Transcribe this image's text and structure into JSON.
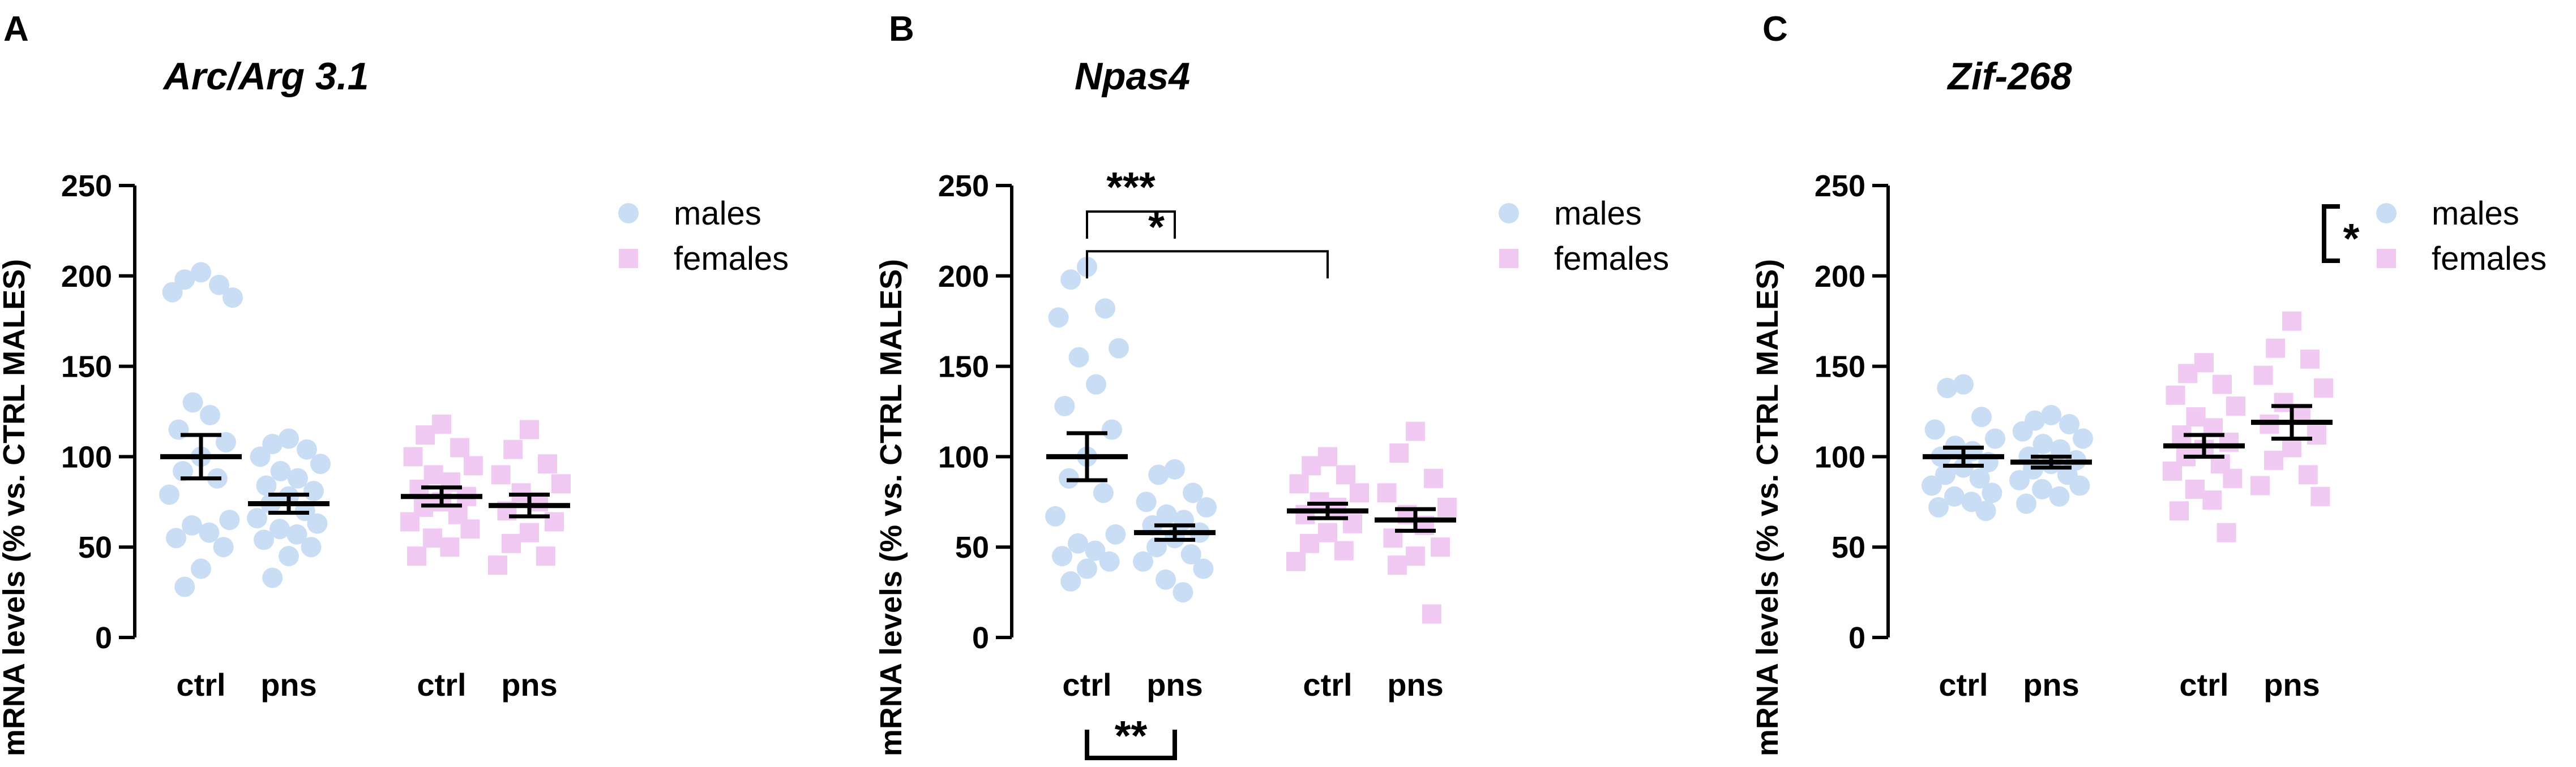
{
  "chart_data": [
    {
      "type": "scatter",
      "panel": "A",
      "title": "Arc/Arg 3.1",
      "xlabel": "",
      "ylabel": "mRNA levels (% vs. CTRL MALES)",
      "ylim": [
        0,
        250
      ],
      "yticks": [
        0,
        50,
        100,
        150,
        200,
        250
      ],
      "categories": [
        "ctrl",
        "pns",
        "ctrl",
        "pns"
      ],
      "legend": [
        {
          "name": "males",
          "marker": "circle",
          "color": "#c9ddf5"
        },
        {
          "name": "females",
          "marker": "square",
          "color": "#f1caf3"
        }
      ],
      "groups": [
        {
          "label": "ctrl",
          "sex": "males",
          "mean": 100,
          "sem": 12,
          "points": [
            202,
            198,
            195,
            191,
            188,
            130,
            123,
            115,
            108,
            100,
            92,
            88,
            79,
            65,
            62,
            58,
            55,
            50,
            38,
            28
          ]
        },
        {
          "label": "pns",
          "sex": "males",
          "mean": 74,
          "sem": 5,
          "points": [
            110,
            107,
            104,
            100,
            96,
            92,
            88,
            84,
            81,
            78,
            74,
            70,
            66,
            63,
            60,
            57,
            54,
            50,
            45,
            33
          ]
        },
        {
          "label": "ctrl",
          "sex": "females",
          "mean": 78,
          "sem": 5,
          "points": [
            118,
            112,
            105,
            100,
            95,
            90,
            86,
            82,
            78,
            75,
            72,
            68,
            64,
            60,
            55,
            50,
            45
          ]
        },
        {
          "label": "pns",
          "sex": "females",
          "mean": 73,
          "sem": 6,
          "points": [
            115,
            104,
            96,
            90,
            85,
            80,
            75,
            70,
            64,
            58,
            52,
            45,
            40
          ]
        }
      ],
      "significance": []
    },
    {
      "type": "scatter",
      "panel": "B",
      "title": "Npas4",
      "xlabel": "",
      "ylabel": "mRNA levels (% vs. CTRL MALES)",
      "ylim": [
        0,
        250
      ],
      "yticks": [
        0,
        50,
        100,
        150,
        200,
        250
      ],
      "categories": [
        "ctrl",
        "pns",
        "ctrl",
        "pns"
      ],
      "legend": [
        {
          "name": "males",
          "marker": "circle",
          "color": "#c9ddf5"
        },
        {
          "name": "females",
          "marker": "square",
          "color": "#f1caf3"
        }
      ],
      "groups": [
        {
          "label": "ctrl",
          "sex": "males",
          "mean": 100,
          "sem": 13,
          "points": [
            205,
            198,
            182,
            177,
            160,
            155,
            140,
            128,
            115,
            100,
            88,
            80,
            67,
            57,
            52,
            48,
            45,
            42,
            38,
            31
          ]
        },
        {
          "label": "pns",
          "sex": "males",
          "mean": 58,
          "sem": 4,
          "points": [
            93,
            90,
            80,
            75,
            72,
            68,
            65,
            62,
            58,
            55,
            50,
            46,
            42,
            38,
            32,
            25
          ]
        },
        {
          "label": "ctrl",
          "sex": "females",
          "mean": 70,
          "sem": 4,
          "points": [
            100,
            95,
            90,
            85,
            80,
            75,
            72,
            68,
            63,
            58,
            52,
            48,
            42
          ]
        },
        {
          "label": "pns",
          "sex": "females",
          "mean": 65,
          "sem": 6,
          "points": [
            114,
            102,
            88,
            80,
            72,
            68,
            62,
            55,
            50,
            45,
            40,
            13
          ]
        }
      ],
      "significance": [
        {
          "from": 0,
          "to": 1,
          "label": "***",
          "y": 245,
          "drop": 13,
          "type": "bracket"
        },
        {
          "from": 0,
          "to": 2,
          "label": "*",
          "y": 223,
          "drop": 13,
          "type": "bracket"
        },
        {
          "from": 0,
          "to": 1,
          "label": "**",
          "y": -67,
          "type": "below"
        }
      ]
    },
    {
      "type": "scatter",
      "panel": "C",
      "title": "Zif-268",
      "xlabel": "",
      "ylabel": "mRNA levels (% vs. CTRL MALES)",
      "ylim": [
        0,
        250
      ],
      "yticks": [
        0,
        50,
        100,
        150,
        200,
        250
      ],
      "categories": [
        "ctrl",
        "pns",
        "ctrl",
        "pns"
      ],
      "legend": [
        {
          "name": "males",
          "marker": "circle",
          "color": "#c9ddf5"
        },
        {
          "name": "females",
          "marker": "square",
          "color": "#f1caf3"
        }
      ],
      "groups": [
        {
          "label": "ctrl",
          "sex": "males",
          "mean": 100,
          "sem": 5,
          "points": [
            140,
            138,
            122,
            115,
            110,
            106,
            103,
            100,
            97,
            94,
            90,
            88,
            84,
            80,
            78,
            75,
            72,
            70
          ]
        },
        {
          "label": "pns",
          "sex": "males",
          "mean": 97,
          "sem": 3,
          "points": [
            123,
            120,
            118,
            114,
            110,
            107,
            104,
            100,
            98,
            96,
            93,
            90,
            87,
            84,
            82,
            78,
            74
          ]
        },
        {
          "label": "ctrl",
          "sex": "females",
          "mean": 106,
          "sem": 6,
          "points": [
            152,
            146,
            140,
            134,
            128,
            122,
            116,
            112,
            108,
            104,
            100,
            96,
            92,
            88,
            82,
            76,
            70,
            58
          ]
        },
        {
          "label": "pns",
          "sex": "females",
          "mean": 119,
          "sem": 9,
          "points": [
            175,
            160,
            154,
            145,
            138,
            130,
            124,
            118,
            112,
            105,
            98,
            90,
            84,
            78
          ]
        }
      ],
      "significance": [
        {
          "label": "*",
          "type": "legend-bracket"
        }
      ]
    }
  ]
}
